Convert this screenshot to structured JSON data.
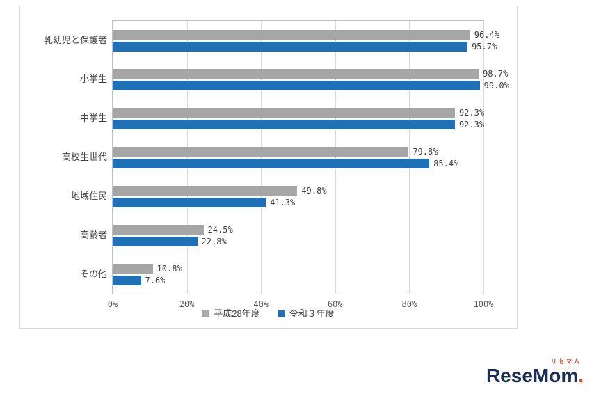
{
  "chart_data": {
    "type": "bar",
    "orientation": "horizontal",
    "title": "",
    "categories": [
      "乳幼児と保護者",
      "小学生",
      "中学生",
      "高校生世代",
      "地域住民",
      "高齢者",
      "その他"
    ],
    "series": [
      {
        "name": "平成28年度",
        "color": "#a6a6a6",
        "values": [
          96.4,
          98.7,
          92.3,
          79.8,
          49.8,
          24.5,
          10.8
        ]
      },
      {
        "name": "令和３年度",
        "color": "#1f70b5",
        "values": [
          95.7,
          99.0,
          92.3,
          85.4,
          41.3,
          22.8,
          7.6
        ]
      }
    ],
    "xlim": [
      0,
      100
    ],
    "xticks": [
      0,
      20,
      40,
      60,
      80,
      100
    ],
    "xtick_suffix": "%",
    "value_label_suffix": "%",
    "grid": true,
    "legend_position": "bottom"
  },
  "logo": {
    "katakana": "リセマム",
    "text": "ReseMom",
    "dot": "."
  }
}
